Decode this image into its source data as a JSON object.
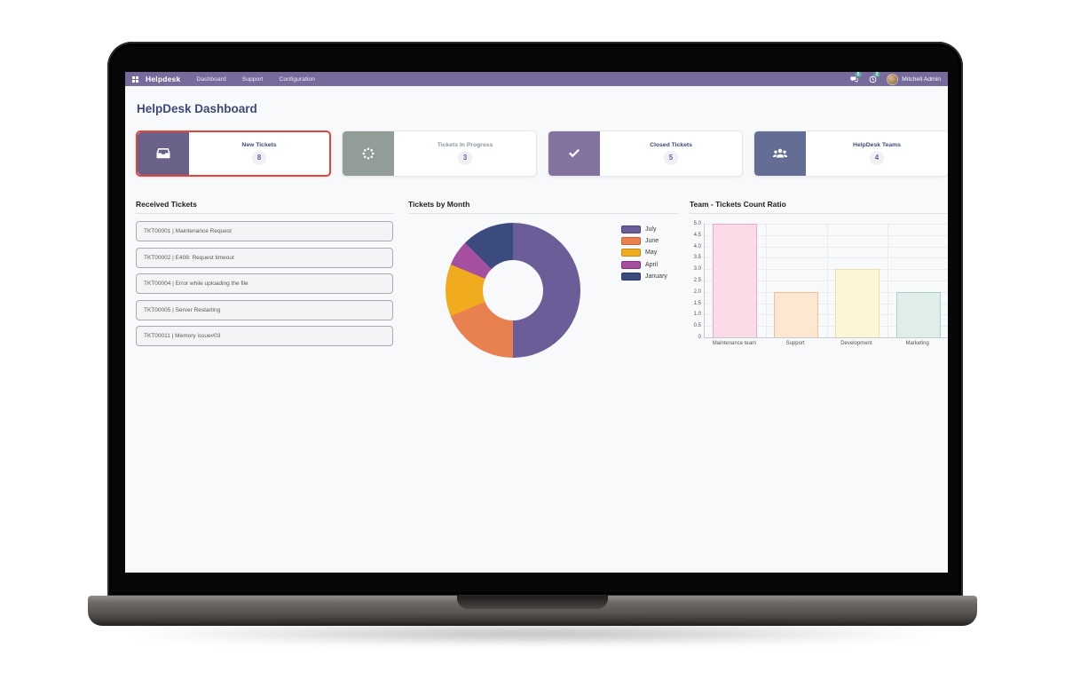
{
  "theme": {
    "navbar_bg": "#776b9e",
    "title_color": "#3b4a78",
    "selected_card_border": "#e5443c",
    "badge_bg": "#5aa79e",
    "screen_bg": "#f8f9fa"
  },
  "navbar": {
    "brand": "Helpdesk",
    "items": [
      {
        "label": "Dashboard"
      },
      {
        "label": "Support"
      },
      {
        "label": "Configuration"
      }
    ],
    "messages_badge": "5",
    "activities_badge": "2",
    "user": "Mitchell Admin"
  },
  "page": {
    "title": "HelpDesk Dashboard"
  },
  "kpis": [
    {
      "label": "New Tickets",
      "value": "8",
      "icon": "inbox-icon",
      "accent": "#6a6189",
      "selected": true
    },
    {
      "label": "Tickets In Progress",
      "value": "3",
      "icon": "spinner-icon",
      "accent": "#939d97",
      "muted_label": true
    },
    {
      "label": "Closed Tickets",
      "value": "5",
      "icon": "check-icon",
      "accent": "#84739f"
    },
    {
      "label": "HelpDesk Teams",
      "value": "4",
      "icon": "users-icon",
      "accent": "#646e94"
    }
  ],
  "received_tickets": {
    "title": "Received Tickets",
    "items": [
      "TKT00001 | Maintenance Request",
      "TKT00002 | E408: Request timeout",
      "TKT00004 | Error while uploading the file",
      "TKT00005 | Server Restarting",
      "TKT00011 | Memory issue#03"
    ]
  },
  "chart_data": [
    {
      "type": "pie",
      "donut": true,
      "title": "Tickets by Month",
      "labels": [
        "July",
        "June",
        "May",
        "April",
        "January"
      ],
      "values": [
        8,
        3,
        2,
        1,
        2
      ],
      "percents": [
        50,
        18.75,
        12.5,
        6.25,
        12.5
      ],
      "colors": [
        "#6b5d97",
        "#e8804f",
        "#f0ab1e",
        "#a4509e",
        "#3c4b7e"
      ],
      "legend_border_colors": [
        "#4f447a",
        "#c55f35",
        "#c78c12",
        "#7d3a7c",
        "#2b3763"
      ],
      "legend_position": "right"
    },
    {
      "type": "bar",
      "title": "Team - Tickets Count Ratio",
      "categories": [
        "Maintenance team",
        "Support",
        "Development",
        "Marketing"
      ],
      "values": [
        5,
        2,
        3,
        2
      ],
      "bar_fill_colors": [
        "#f9dce8",
        "#fce8d2",
        "#fcf5d6",
        "#e0eeeb"
      ],
      "bar_border_colors": [
        "#efa9c5",
        "#f3c08a",
        "#ecdf9f",
        "#abd2ca"
      ],
      "xlabel": "",
      "ylabel": "",
      "ylim": [
        0,
        5
      ],
      "ytick_step": 0.5,
      "grid": true,
      "legend_position": "none"
    }
  ]
}
